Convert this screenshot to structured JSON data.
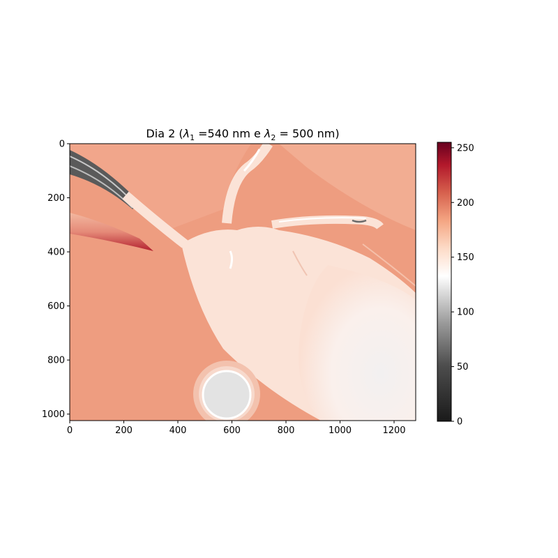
{
  "chart_data": {
    "type": "heatmap",
    "title": "Dia 2 (λ₁ =540 nm e λ₂ = 500 nm)",
    "title_parts": {
      "prefix": "Dia 2 (",
      "lambda": "λ",
      "sub1": "1",
      "mid": " =540 nm e ",
      "sub2": "2",
      "suffix": " = 500 nm)"
    },
    "xlabel": "",
    "ylabel": "",
    "x_range": [
      0,
      1280
    ],
    "y_range": [
      1024,
      0
    ],
    "x_ticks": [
      0,
      200,
      400,
      600,
      800,
      1000,
      1200
    ],
    "y_ticks": [
      0,
      200,
      400,
      600,
      800,
      1000
    ],
    "colorbar": {
      "colormap": "RdGy_r",
      "range": [
        0,
        255
      ],
      "ticks": [
        0,
        50,
        100,
        150,
        200,
        250
      ]
    },
    "regions": [
      {
        "name": "background",
        "value": 185
      },
      {
        "name": "central structure",
        "value": 150
      },
      {
        "name": "lower-right lobe",
        "value": 130
      },
      {
        "name": "bright disk",
        "value": 115
      },
      {
        "name": "upper-left band",
        "value": 70
      },
      {
        "name": "left dark-red band",
        "value": 235
      }
    ]
  },
  "colors": {
    "background": "#ef9e82",
    "structure": "#fbe2d6",
    "lobe": "#f9f1ee",
    "disk": "#e2e2e2",
    "cmap_top": "#67001f",
    "cmap_mid": "#ffffff",
    "cmap_bottom": "#1a1a1a"
  }
}
